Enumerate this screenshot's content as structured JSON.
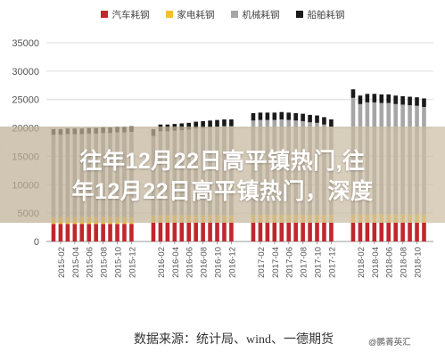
{
  "legend": [
    {
      "name": "汽车耗钢",
      "color": "#c0272d"
    },
    {
      "name": "家电耗钢",
      "color": "#f2c12e"
    },
    {
      "name": "机械耗钢",
      "color": "#a6a6a6"
    },
    {
      "name": "船舶耗钢",
      "color": "#1a1a1a"
    }
  ],
  "banner": {
    "line1": "往年12月22日高平镇热门,往",
    "line2": "年12月22日高平镇热门，深度"
  },
  "source": "数据来源：统计局、wind、一德期货",
  "watermark": "@鹏菁英汇",
  "chart_data": {
    "type": "bar",
    "stacked": true,
    "ylim": [
      0,
      35000
    ],
    "yticks": [
      0,
      5000,
      10000,
      15000,
      20000,
      25000,
      30000,
      35000
    ],
    "grid": true,
    "x": [
      "2015-01",
      "2015-02",
      "2015-03",
      "2015-04",
      "2015-05",
      "2015-06",
      "2015-07",
      "2015-08",
      "2015-09",
      "2015-10",
      "2015-11",
      "2015-12",
      "2016-01",
      "2016-02",
      "2016-03",
      "2016-04",
      "2016-05",
      "2016-06",
      "2016-07",
      "2016-08",
      "2016-09",
      "2016-10",
      "2016-11",
      "2016-12",
      "2017-01",
      "2017-02",
      "2017-03",
      "2017-04",
      "2017-05",
      "2017-06",
      "2017-07",
      "2017-08",
      "2017-09",
      "2017-10",
      "2017-11",
      "2017-12",
      "2018-01",
      "2018-02",
      "2018-03",
      "2018-04",
      "2018-05",
      "2018-06",
      "2018-07",
      "2018-08",
      "2018-09",
      "2018-10",
      "2018-11"
    ],
    "xtick_labels": [
      "2015-02",
      "2015-04",
      "2015-06",
      "2015-08",
      "2015-10",
      "2015-12",
      "2016-02",
      "2016-04",
      "2016-06",
      "2016-08",
      "2016-10",
      "2016-12",
      "2017-02",
      "2017-04",
      "2017-06",
      "2017-08",
      "2017-10",
      "2017-12",
      "2018-02",
      "2018-04",
      "2018-06",
      "2018-08",
      "2018-10"
    ],
    "series": [
      {
        "name": "汽车耗钢",
        "color": "#c0272d",
        "values": [
          3100,
          3100,
          3100,
          3100,
          3100,
          3100,
          3100,
          3100,
          3100,
          3100,
          3100,
          3100,
          3300,
          3300,
          3300,
          3300,
          3300,
          3300,
          3300,
          3300,
          3300,
          3300,
          3300,
          3300,
          3300,
          3300,
          3300,
          3300,
          3300,
          3300,
          3300,
          3300,
          3300,
          3300,
          3300,
          3300,
          3300,
          3300,
          3300,
          3300,
          3300,
          3300,
          3300,
          3300,
          3300,
          3300,
          3300
        ]
      },
      {
        "name": "家电耗钢",
        "color": "#f2c12e",
        "values": [
          1200,
          1200,
          1200,
          1200,
          1200,
          1200,
          1200,
          1200,
          1200,
          1200,
          1200,
          1200,
          1300,
          1300,
          1300,
          1300,
          1300,
          1300,
          1300,
          1300,
          1300,
          1300,
          1300,
          1300,
          1400,
          1400,
          1400,
          1400,
          1400,
          1400,
          1400,
          1400,
          1400,
          1400,
          1400,
          1400,
          1500,
          1500,
          1500,
          1500,
          1500,
          1500,
          1500,
          1500,
          1500,
          1500,
          1500
        ]
      },
      {
        "name": "机械耗钢",
        "color": "#a6a6a6",
        "values": [
          14500,
          14500,
          14600,
          14600,
          14600,
          14700,
          14700,
          14800,
          14800,
          14900,
          14900,
          15000,
          14000,
          14800,
          14800,
          14900,
          15000,
          15100,
          15300,
          15400,
          15500,
          15600,
          15700,
          15700,
          16600,
          16700,
          16700,
          16700,
          16800,
          16700,
          16600,
          16500,
          16300,
          16200,
          15900,
          15500,
          20500,
          19400,
          19700,
          19700,
          19600,
          19600,
          19400,
          19300,
          19200,
          19100,
          18900
        ]
      },
      {
        "name": "船舶耗钢",
        "color": "#1a1a1a",
        "values": [
          1000,
          1000,
          1000,
          1000,
          1000,
          1000,
          1000,
          1000,
          1000,
          1000,
          1000,
          1000,
          1200,
          1200,
          1200,
          1200,
          1200,
          1200,
          1200,
          1200,
          1200,
          1200,
          1200,
          1200,
          1300,
          1300,
          1300,
          1300,
          1300,
          1300,
          1300,
          1300,
          1300,
          1300,
          1300,
          1300,
          1500,
          1500,
          1500,
          1500,
          1500,
          1500,
          1500,
          1500,
          1500,
          1500,
          1500
        ]
      }
    ]
  }
}
